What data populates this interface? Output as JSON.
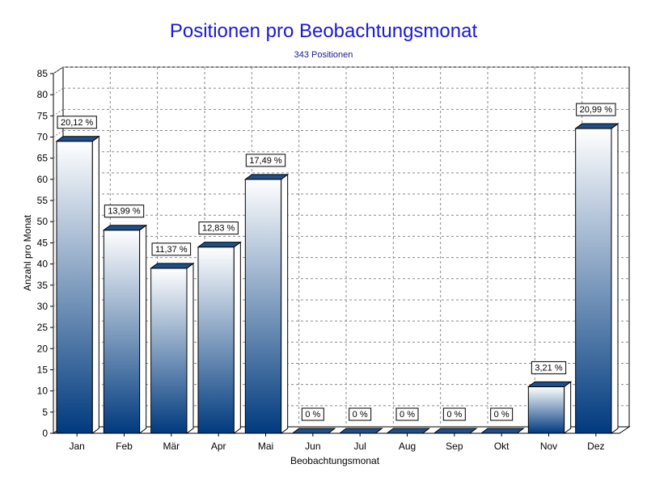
{
  "chart_data": {
    "type": "bar",
    "title": "Positionen pro Beobachtungsmonat",
    "subtitle": "343 Positionen",
    "xlabel": "Beobachtungsmonat",
    "ylabel": "Anzahl pro Monat",
    "categories": [
      "Jan",
      "Feb",
      "Mär",
      "Apr",
      "Mai",
      "Jun",
      "Jul",
      "Aug",
      "Sep",
      "Okt",
      "Nov",
      "Dez"
    ],
    "values": [
      69,
      48,
      39,
      44,
      60,
      0,
      0,
      0,
      0,
      0,
      11,
      72
    ],
    "data_labels": [
      "20,12 %",
      "13,99 %",
      "11,37 %",
      "12,83 %",
      "17,49 %",
      "0 %",
      "0 %",
      "0 %",
      "0 %",
      "0 %",
      "3,21 %",
      "20,99 %"
    ],
    "ylim": [
      0,
      85
    ],
    "ytick_step": 5,
    "grid": true,
    "legend": "none",
    "colors": {
      "title": "#1a1ad0",
      "subtitle": "#1a1a8c",
      "bar_top": "#ffffff",
      "bar_bottom": "#003a7e",
      "bar_side": "#ffffff",
      "bar_cap": "#1f4f8a",
      "grid": "#8a8a8a"
    }
  }
}
